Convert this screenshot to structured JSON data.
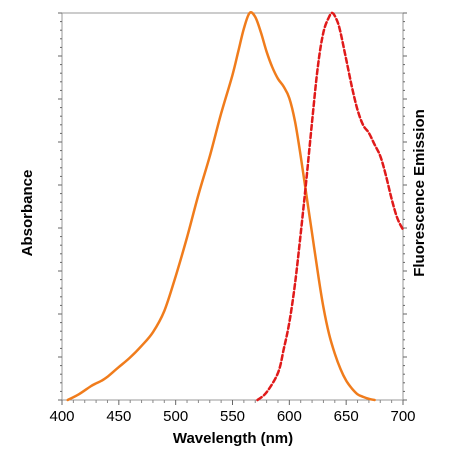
{
  "chart_data": {
    "type": "line",
    "xlabel": "Wavelength (nm)",
    "ylabel_left": "Absorbance",
    "ylabel_right": "Fluorescence Emission",
    "xlim": [
      400,
      700
    ],
    "ylim": [
      0,
      1
    ],
    "x_ticks": [
      400,
      450,
      500,
      550,
      600,
      650,
      700
    ],
    "grid": false,
    "legend": "none",
    "series": [
      {
        "axis": "left",
        "style": "solid",
        "color": "#F07C1C",
        "x": [
          405,
          415,
          425,
          430,
          435,
          440,
          450,
          460,
          470,
          480,
          490,
          500,
          510,
          520,
          530,
          540,
          550,
          555,
          560,
          565,
          570,
          575,
          580,
          585,
          590,
          595,
          600,
          605,
          610,
          615,
          620,
          625,
          630,
          635,
          640,
          645,
          650,
          655,
          660,
          665,
          670,
          675
        ],
        "y": [
          0.0,
          0.015,
          0.035,
          0.043,
          0.05,
          0.06,
          0.085,
          0.11,
          0.14,
          0.175,
          0.23,
          0.32,
          0.42,
          0.53,
          0.63,
          0.74,
          0.84,
          0.9,
          0.96,
          1.0,
          0.99,
          0.95,
          0.9,
          0.86,
          0.83,
          0.81,
          0.78,
          0.72,
          0.63,
          0.53,
          0.43,
          0.33,
          0.24,
          0.17,
          0.12,
          0.08,
          0.05,
          0.03,
          0.015,
          0.008,
          0.003,
          0.0
        ]
      },
      {
        "axis": "right",
        "style": "dashed",
        "color": "#E01A1A",
        "x": [
          572,
          580,
          590,
          595,
          600,
          605,
          610,
          615,
          620,
          625,
          630,
          635,
          638,
          642,
          645,
          650,
          655,
          660,
          665,
          670,
          675,
          680,
          685,
          690,
          695,
          700
        ],
        "y": [
          0.0,
          0.02,
          0.07,
          0.13,
          0.2,
          0.3,
          0.43,
          0.57,
          0.72,
          0.86,
          0.95,
          0.99,
          1.0,
          0.98,
          0.95,
          0.88,
          0.81,
          0.75,
          0.71,
          0.69,
          0.66,
          0.63,
          0.58,
          0.52,
          0.47,
          0.44
        ]
      }
    ]
  }
}
